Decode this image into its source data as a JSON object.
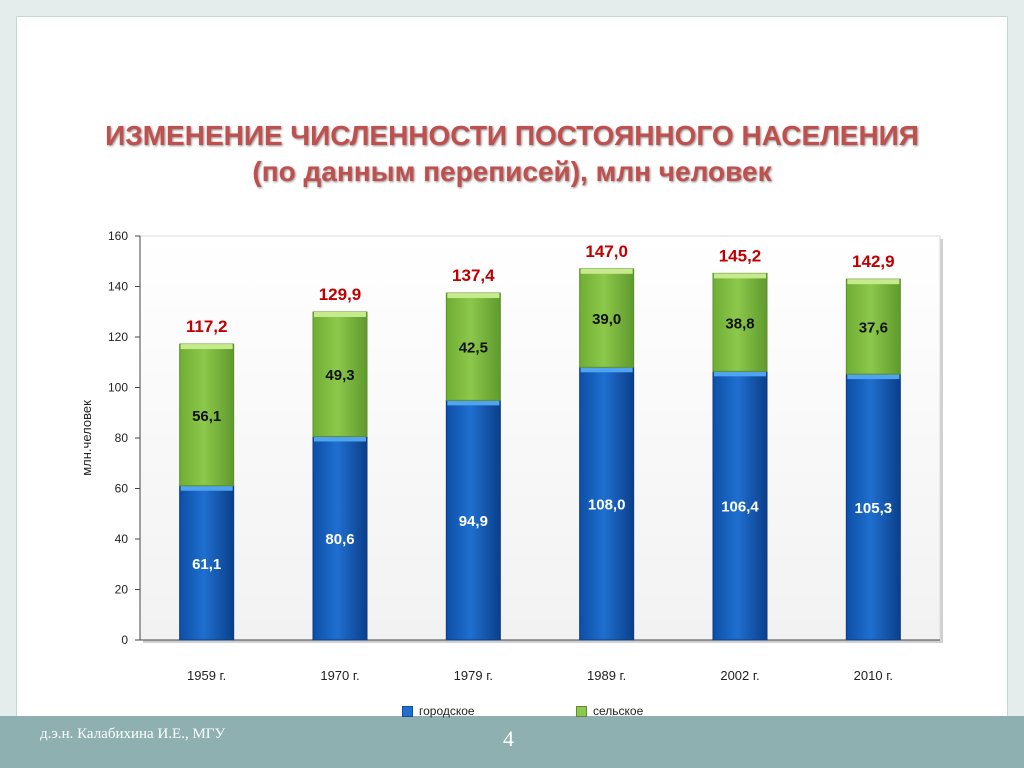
{
  "title": {
    "line1": "ИЗМЕНЕНИЕ ЧИСЛЕННОСТИ ПОСТОЯННОГО НАСЕЛЕНИЯ",
    "line2": "(по данным переписей), млн человек"
  },
  "footer": {
    "author": "д.э.н. Калабихина И.Е., МГУ",
    "page_number": "4"
  },
  "colors": {
    "urban": "#1f6fcf",
    "rural": "#8cc84b",
    "total_label": "#c00000",
    "title": "#c0504d"
  },
  "chart_data": {
    "type": "bar",
    "stacked": true,
    "categories": [
      "1959 г.",
      "1970 г.",
      "1979 г.",
      "1989 г.",
      "2002 г.",
      "2010 г."
    ],
    "series": [
      {
        "name": "городское",
        "values": [
          61.1,
          80.6,
          94.9,
          108.0,
          106.4,
          105.3
        ],
        "labels": [
          "61,1",
          "80,6",
          "94,9",
          "108,0",
          "106,4",
          "105,3"
        ]
      },
      {
        "name": "сельское",
        "values": [
          56.1,
          49.3,
          42.5,
          39.0,
          38.8,
          37.6
        ],
        "labels": [
          "56,1",
          "49,3",
          "42,5",
          "39,0",
          "38,8",
          "37,6"
        ]
      }
    ],
    "totals": [
      117.2,
      129.9,
      137.4,
      147.0,
      145.2,
      142.9
    ],
    "total_labels": [
      "117,2",
      "129,9",
      "137,4",
      "147,0",
      "145,2",
      "142,9"
    ],
    "ylabel": "млн.человек",
    "xlabel": "",
    "ylim": [
      0,
      160
    ],
    "yticks": [
      0,
      20,
      40,
      60,
      80,
      100,
      120,
      140,
      160
    ],
    "legend_position": "bottom",
    "grid": false
  }
}
